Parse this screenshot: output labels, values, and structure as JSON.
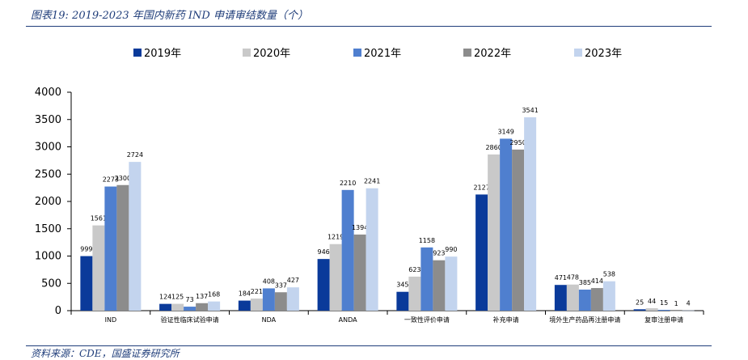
{
  "title": "图表19: 2019-2023 年国内新药 IND 申请审结数量（个）",
  "source": "资料来源：CDE，国盛证券研究所",
  "chart_data": {
    "type": "bar",
    "categories": [
      "IND",
      "验证性临床试验申请",
      "NDA",
      "ANDA",
      "一致性评价申请",
      "补充申请",
      "境外生产药品再注册申请",
      "复审注册申请"
    ],
    "series": [
      {
        "name": "2019年",
        "color": "#0a3a9a",
        "values": [
          999,
          124,
          184,
          946,
          345,
          2127,
          471,
          25
        ]
      },
      {
        "name": "2020年",
        "color": "#c9c9c9",
        "values": [
          1561,
          125,
          221,
          1219,
          623,
          2860,
          478,
          44
        ]
      },
      {
        "name": "2021年",
        "color": "#4f7fcf",
        "values": [
          2273,
          73,
          408,
          2210,
          1158,
          3149,
          385,
          15
        ]
      },
      {
        "name": "2022年",
        "color": "#8c8c8c",
        "values": [
          2300,
          137,
          337,
          1394,
          923,
          2950,
          414,
          1
        ]
      },
      {
        "name": "2023年",
        "color": "#c3d4ee",
        "values": [
          2724,
          168,
          427,
          2241,
          990,
          3541,
          538,
          4
        ]
      }
    ],
    "yticks": [
      0,
      500,
      1000,
      1500,
      2000,
      2500,
      3000,
      3500,
      4000
    ],
    "ylim": [
      0,
      4000
    ],
    "legend": "top-center",
    "grid": false
  }
}
